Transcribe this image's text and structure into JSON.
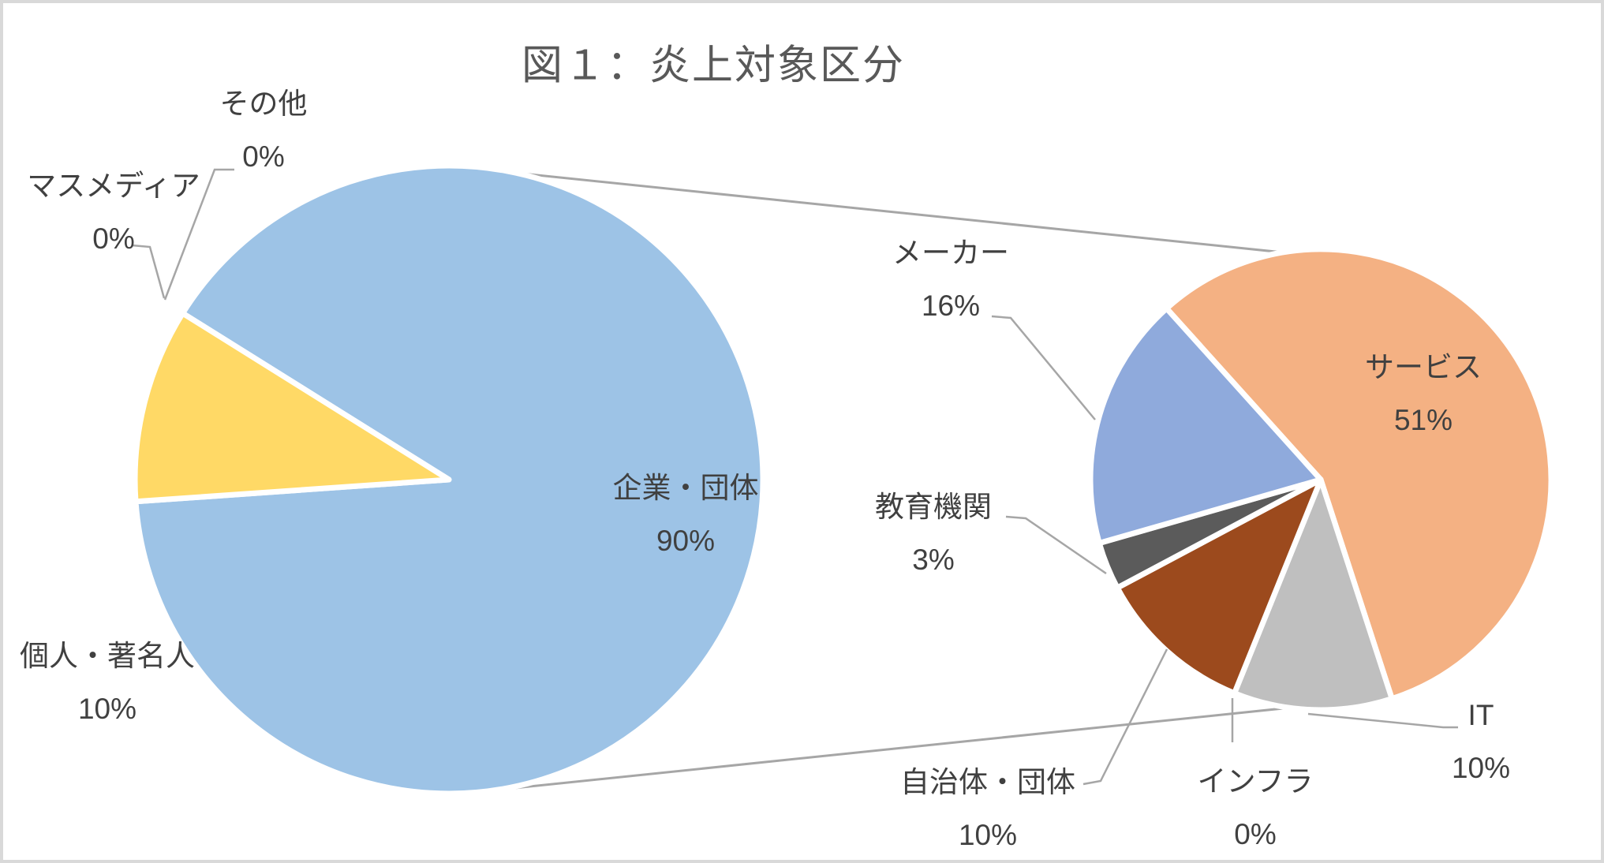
{
  "title": "図１：炎上対象区分",
  "frame": {
    "border_color": "#D9D9D9",
    "background": "#FFFFFF"
  },
  "text_colors": {
    "title": "#595959",
    "labels": "#404040"
  },
  "line_color": "#A6A6A6",
  "chart_data": {
    "type": "pie",
    "subtype": "pie-of-pie",
    "title": "図１：炎上対象区分",
    "legend_position": "none",
    "data_labels": "category name + percentage, outside-end with leader lines",
    "main_pie": {
      "total_pct": 100,
      "slices": [
        {
          "label": "企業・団体",
          "value": 90,
          "pct": "90%",
          "color": "#9DC3E6"
        },
        {
          "label": "個人・著名人",
          "value": 10,
          "pct": "10%",
          "color": "#FFD966"
        },
        {
          "label": "マスメディア",
          "value": 0,
          "pct": "0%",
          "color": null
        },
        {
          "label": "その他",
          "value": 0,
          "pct": "0%",
          "color": null
        }
      ]
    },
    "secondary_pie": {
      "represents": "企業・団体",
      "total_pct": 90,
      "slices": [
        {
          "label": "サービス",
          "value": 51,
          "pct": "51%",
          "color": "#F4B183"
        },
        {
          "label": "IT",
          "value": 10,
          "pct": "10%",
          "color": "#BFBFBF"
        },
        {
          "label": "インフラ",
          "value": 0,
          "pct": "0%",
          "color": null
        },
        {
          "label": "自治体・団体",
          "value": 10,
          "pct": "10%",
          "color": "#9C4A1D"
        },
        {
          "label": "教育機関",
          "value": 3,
          "pct": "3%",
          "color": "#5B5B5B"
        },
        {
          "label": "メーカー",
          "value": 16,
          "pct": "16%",
          "color": "#8FAADC"
        }
      ]
    }
  }
}
